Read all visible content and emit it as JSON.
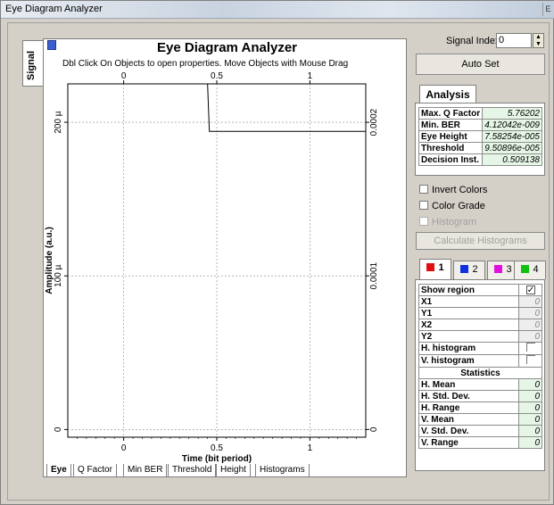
{
  "window": {
    "title": "Eye Diagram Analyzer",
    "title_button": "E"
  },
  "side_tab": {
    "label": "Signal"
  },
  "plot": {
    "title": "Eye Diagram Analyzer",
    "subtitle": "Dbl Click On Objects to open properties.  Move Objects with Mouse Drag"
  },
  "bottom_tabs": [
    "Eye",
    "Q Factor",
    "Min BER",
    "Threshold",
    "Height",
    "Histograms"
  ],
  "signal_index": {
    "label": "Signal Index:",
    "value": "0"
  },
  "auto_set_label": "Auto Set",
  "analysis": {
    "tab_label": "Analysis",
    "rows": [
      {
        "key": "Max. Q Factor",
        "value": "5.76202"
      },
      {
        "key": "Min. BER",
        "value": "4.12042e-009"
      },
      {
        "key": "Eye Height",
        "value": "7.58254e-005"
      },
      {
        "key": "Threshold",
        "value": "9.50896e-005"
      },
      {
        "key": "Decision Inst.",
        "value": "0.509138"
      }
    ]
  },
  "options": {
    "invert_colors": "Invert Colors",
    "color_grade": "Color Grade",
    "histogram": "Histogram",
    "calc_histograms": "Calculate Histograms"
  },
  "channel_tabs": [
    {
      "label": "1",
      "color": "#e01010"
    },
    {
      "label": "2",
      "color": "#1030e0"
    },
    {
      "label": "3",
      "color": "#e010e0"
    },
    {
      "label": "4",
      "color": "#10c010"
    }
  ],
  "channel_props": {
    "show_region": "Show region",
    "show_region_mark": "✓",
    "x1": "X1",
    "x1_val": "0",
    "y1": "Y1",
    "y1_val": "0",
    "x2": "X2",
    "x2_val": "0",
    "y2": "Y2",
    "y2_val": "0",
    "h_hist": "H. histogram",
    "v_hist": "V. histogram",
    "stats_header": "Statistics",
    "stats": [
      {
        "key": "H. Mean",
        "value": "0"
      },
      {
        "key": "H. Std. Dev.",
        "value": "0"
      },
      {
        "key": "H. Range",
        "value": "0"
      },
      {
        "key": "V. Mean",
        "value": "0"
      },
      {
        "key": "V. Std. Dev.",
        "value": "0"
      },
      {
        "key": "V. Range",
        "value": "0"
      }
    ]
  },
  "chart_data": {
    "type": "line",
    "title": "Eye Diagram Analyzer",
    "xlabel": "Time (bit period)",
    "ylabel": "Amplitude (a.u.)",
    "xlim": [
      -0.3,
      1.3
    ],
    "ylim": [
      -5e-06,
      0.000225
    ],
    "x_ticks": [
      {
        "v": 0,
        "label": "0"
      },
      {
        "v": 0.5,
        "label": "0.5"
      },
      {
        "v": 1,
        "label": "1"
      }
    ],
    "y_left_ticks": [
      {
        "v": 0,
        "label": "0"
      },
      {
        "v": 0.0001,
        "label": "100 µ"
      },
      {
        "v": 0.0002,
        "label": "200 µ"
      }
    ],
    "y_right_ticks": [
      {
        "v": 0,
        "label": "0"
      },
      {
        "v": 0.0001,
        "label": "0.0001"
      },
      {
        "v": 0.0002,
        "label": "0.0002"
      }
    ],
    "grid": true,
    "trace_color": "#000000"
  }
}
